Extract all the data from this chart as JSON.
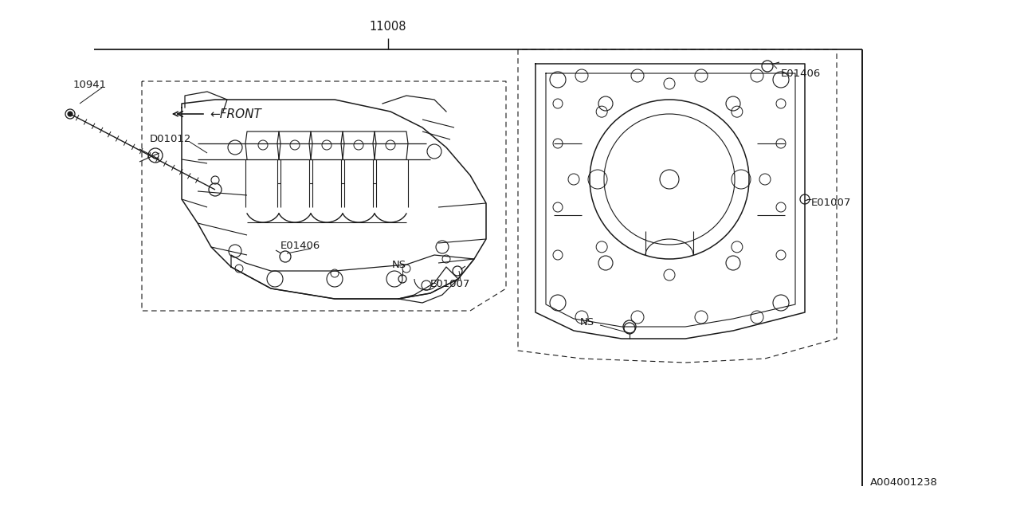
{
  "bg_color": "#ffffff",
  "fig_width": 12.8,
  "fig_height": 6.4,
  "dpi": 100,
  "line_color": "#1a1a1a",
  "text_color": "#1a1a1a",
  "part_11008": "11008",
  "part_10941": "10941",
  "part_D01012": "D01012",
  "part_E01406": "E01406",
  "part_NS": "NS",
  "part_E01007": "E01007",
  "label_front": "←FRONT",
  "label_code": "A004001238",
  "font_size": 9.5,
  "font_family": "DejaVu Sans"
}
